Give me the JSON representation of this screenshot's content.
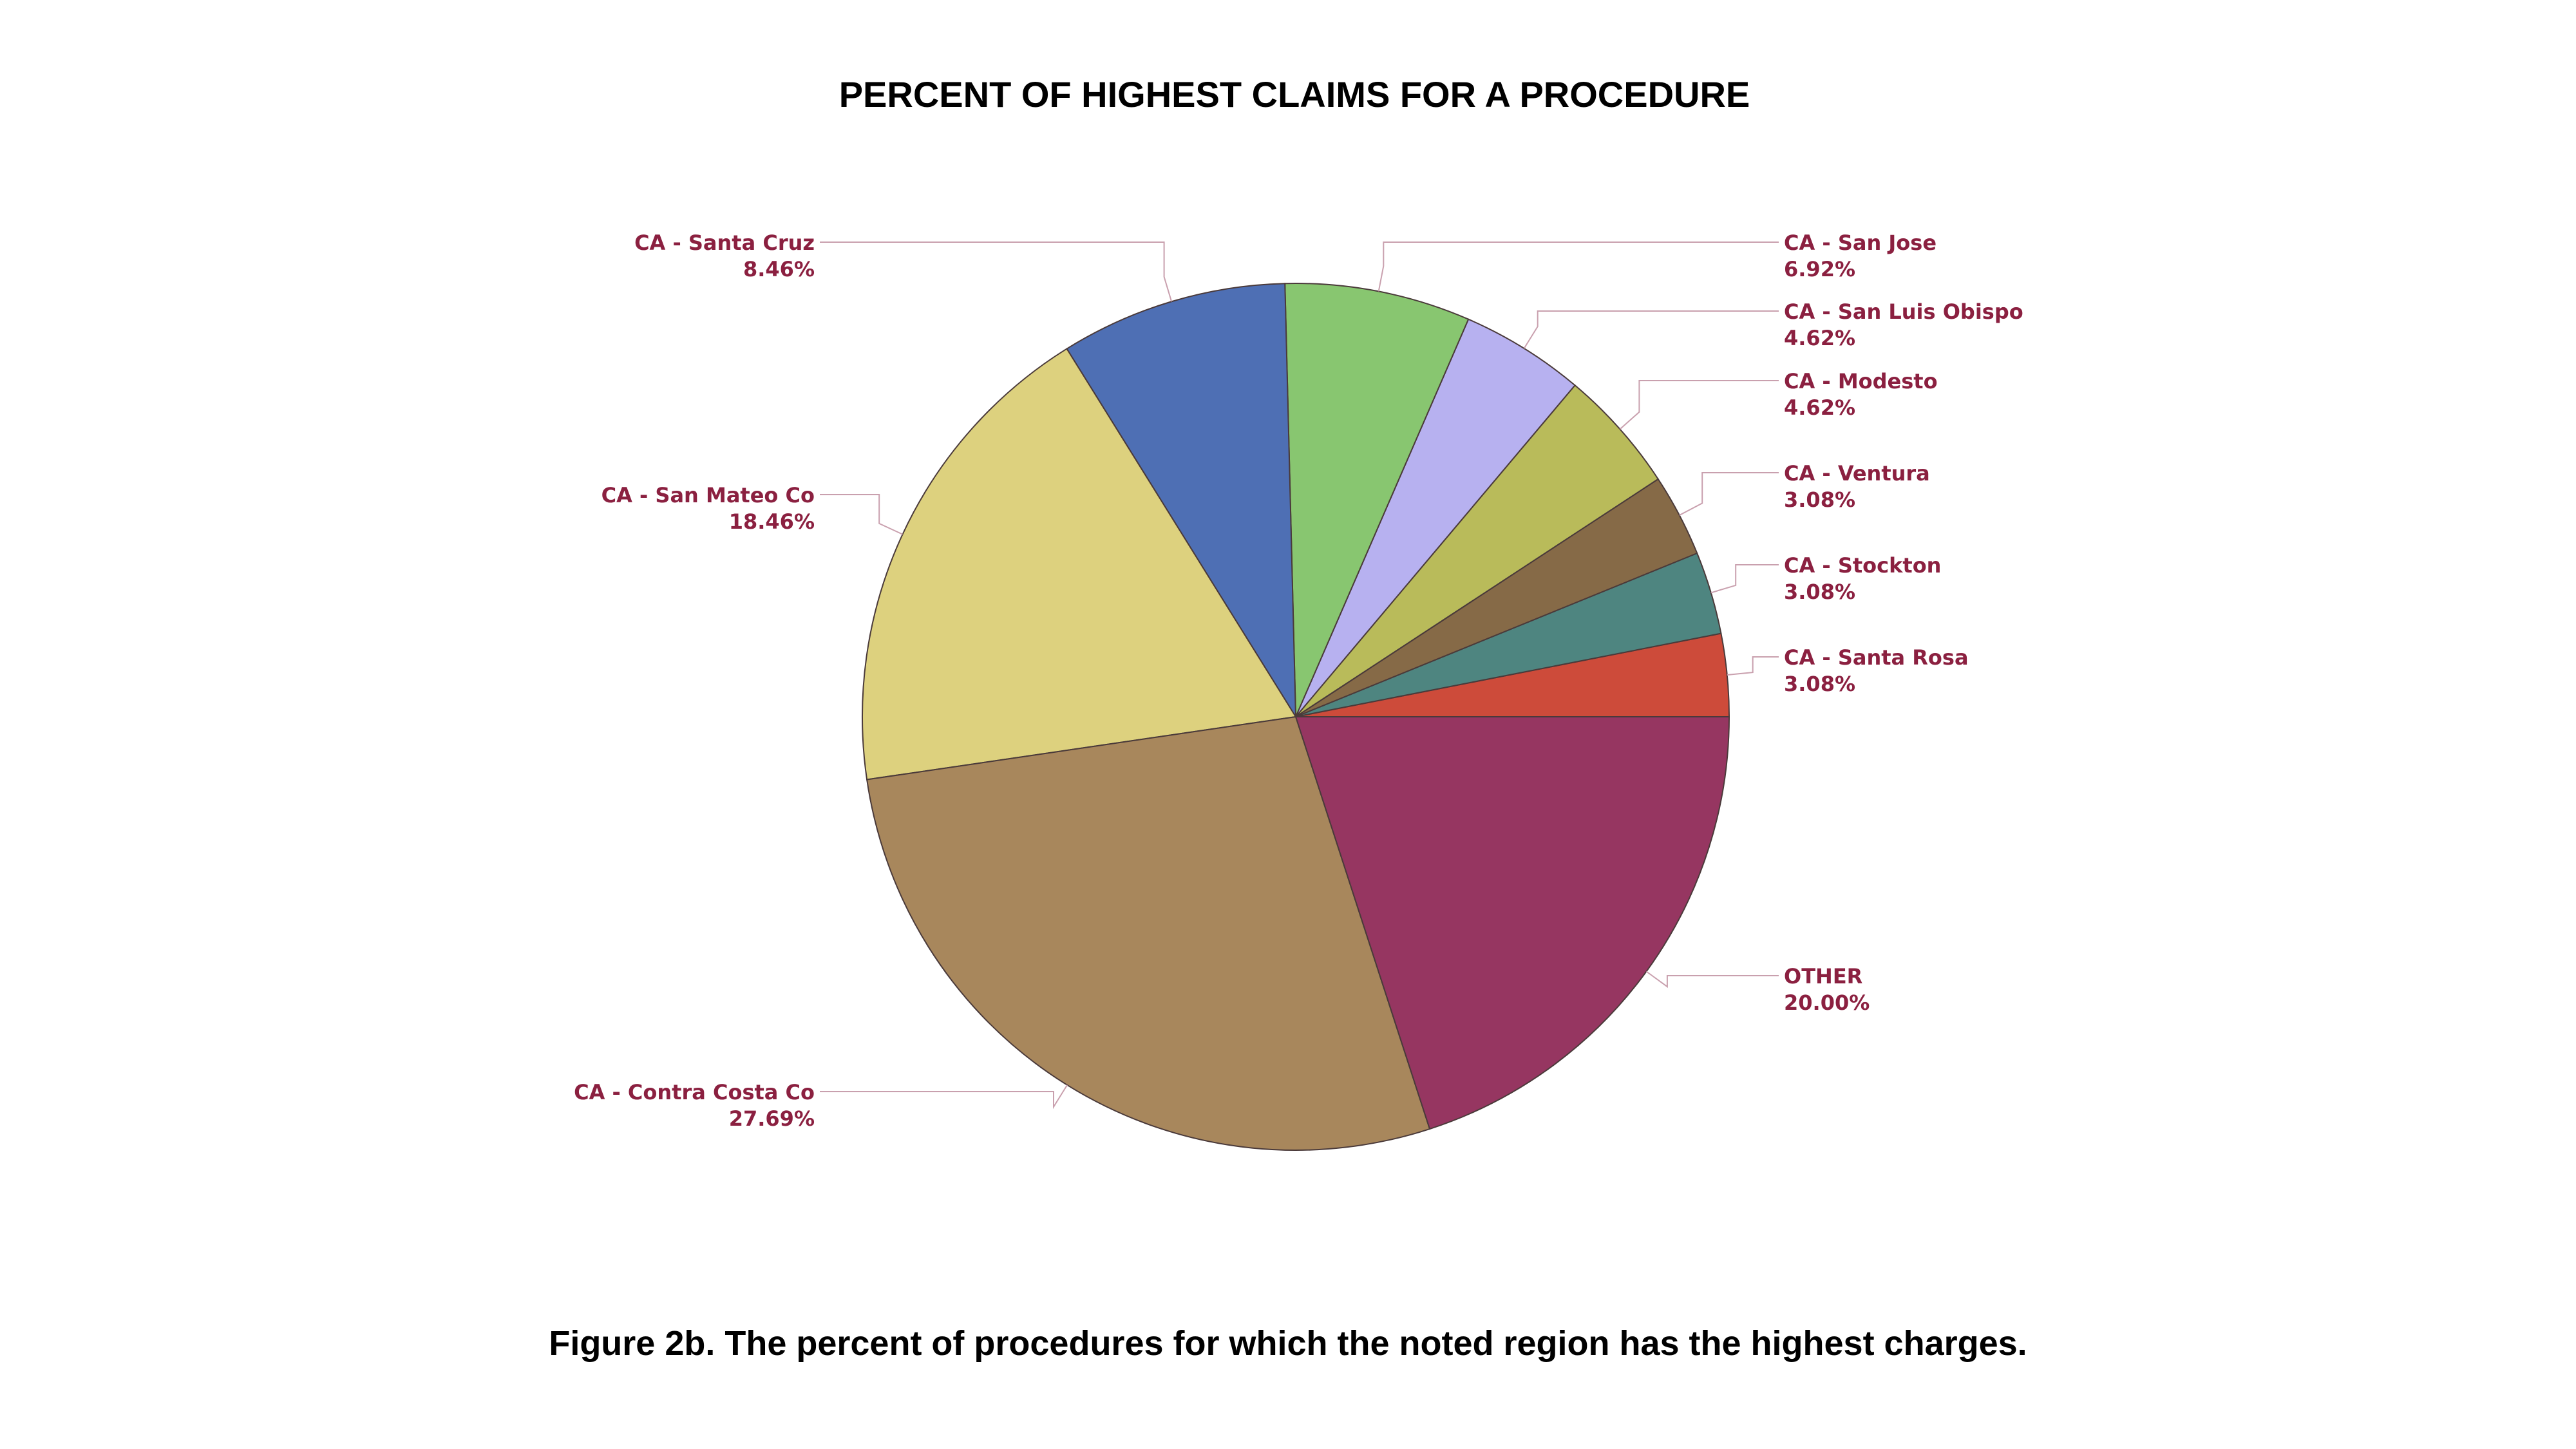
{
  "chart_data": {
    "type": "pie",
    "title": "PERCENT OF HIGHEST CLAIMS FOR A PROCEDURE",
    "start_angle_deg": 0,
    "direction": "counterclockwise",
    "slices": [
      {
        "label": "CA - Santa Rosa",
        "value": 3.08,
        "value_label": "3.08%",
        "color": "#cd4b3a"
      },
      {
        "label": "CA - Stockton",
        "value": 3.08,
        "value_label": "3.08%",
        "color": "#4e8580"
      },
      {
        "label": "CA - Ventura",
        "value": 3.08,
        "value_label": "3.08%",
        "color": "#866a47"
      },
      {
        "label": "CA - Modesto",
        "value": 4.62,
        "value_label": "4.62%",
        "color": "#b9bb5a"
      },
      {
        "label": "CA - San Luis Obispo",
        "value": 4.62,
        "value_label": "4.62%",
        "color": "#b7b1f0"
      },
      {
        "label": "CA - San Jose",
        "value": 6.92,
        "value_label": "6.92%",
        "color": "#88c670"
      },
      {
        "label": "CA - Santa Cruz",
        "value": 8.46,
        "value_label": "8.46%",
        "color": "#4e6fb4"
      },
      {
        "label": "CA - San Mateo Co",
        "value": 18.46,
        "value_label": "18.46%",
        "color": "#ddd17e"
      },
      {
        "label": "CA - Contra Costa Co",
        "value": 27.69,
        "value_label": "27.69%",
        "color": "#a8875c"
      },
      {
        "label": "OTHER",
        "value": 20.0,
        "value_label": "20.00%",
        "color": "#963661"
      }
    ]
  },
  "caption": "Figure 2b. The percent of procedures for which the noted region has the highest charges."
}
